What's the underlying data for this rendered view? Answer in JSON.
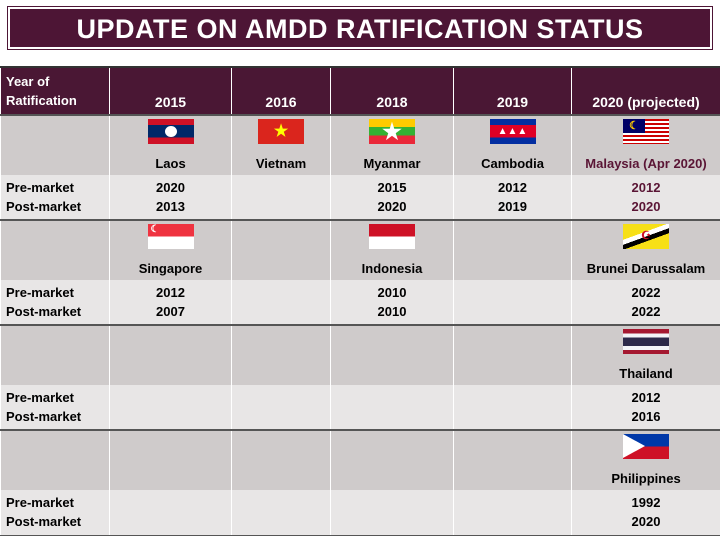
{
  "title": "UPDATE ON AMDD RATIFICATION STATUS",
  "header": {
    "first": "Year of Ratification",
    "cols": [
      "2015",
      "2016",
      "2018",
      "2019",
      "2020 (projected)"
    ]
  },
  "labels": {
    "pre": "Pre-market",
    "post": "Post-market"
  },
  "groups": [
    {
      "countries": [
        {
          "name": "Laos",
          "flag": "laos",
          "pre": "2020",
          "post": "2013"
        },
        {
          "name": "Vietnam",
          "flag": "vietnam",
          "pre": "",
          "post": ""
        },
        {
          "name": "Myanmar",
          "flag": "myanmar",
          "pre": "2015",
          "post": "2020"
        },
        {
          "name": "Cambodia",
          "flag": "cambodia",
          "pre": "2012",
          "post": "2019"
        },
        {
          "name": "Malaysia (Apr 2020)",
          "flag": "malaysia",
          "pre": "2012",
          "post": "2020"
        }
      ]
    },
    {
      "countries": [
        {
          "name": "Singapore",
          "flag": "singapore",
          "pre": "2012",
          "post": "2007"
        },
        null,
        {
          "name": "Indonesia",
          "flag": "indonesia",
          "pre": "2010",
          "post": "2010"
        },
        null,
        {
          "name": "Brunei Darussalam",
          "flag": "brunei",
          "pre": "2022",
          "post": "2022"
        }
      ]
    },
    {
      "countries": [
        null,
        null,
        null,
        null,
        {
          "name": "Thailand",
          "flag": "thailand",
          "pre": "2012",
          "post": "2016"
        }
      ]
    },
    {
      "countries": [
        null,
        null,
        null,
        null,
        {
          "name": "Philippines",
          "flag": "philippines",
          "pre": "1992",
          "post": "2020"
        }
      ]
    }
  ],
  "colors": {
    "header": "#4a1734",
    "malaysia_text": "#5a1535"
  }
}
